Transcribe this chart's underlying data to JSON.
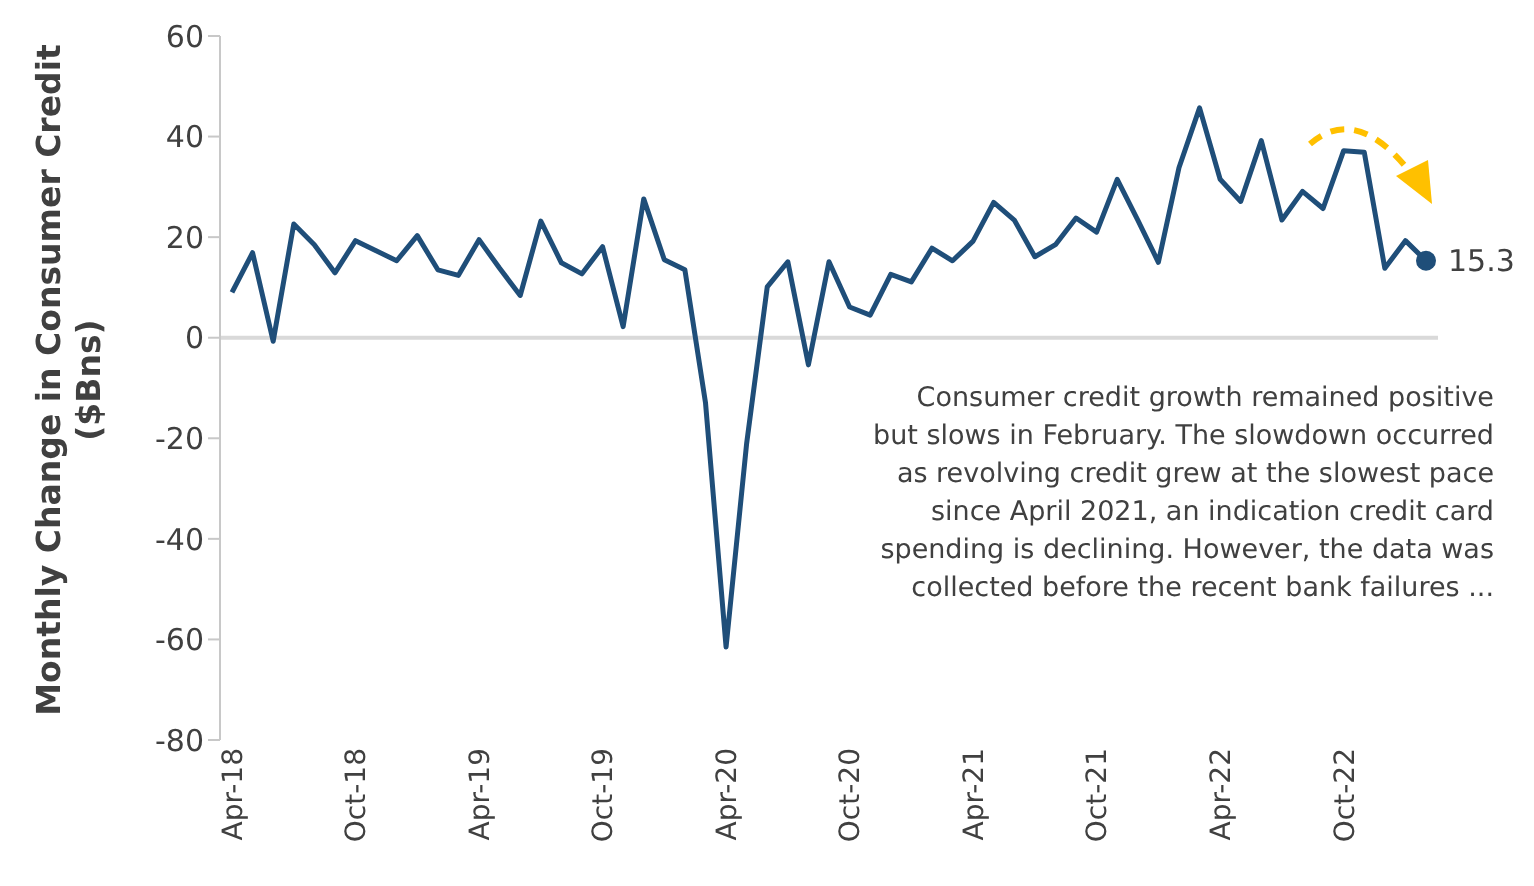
{
  "chart_data": {
    "type": "line",
    "ylabel": "Monthly Change in Consumer Credit ($Bns)",
    "categories": [
      "Apr-18",
      null,
      null,
      null,
      null,
      null,
      "Oct-18",
      null,
      null,
      null,
      null,
      null,
      "Apr-19",
      null,
      null,
      null,
      null,
      null,
      "Oct-19",
      null,
      null,
      null,
      null,
      null,
      "Apr-20",
      null,
      null,
      null,
      null,
      null,
      "Oct-20",
      null,
      null,
      null,
      null,
      null,
      "Apr-21",
      null,
      null,
      null,
      null,
      null,
      "Oct-21",
      null,
      null,
      null,
      null,
      null,
      "Apr-22",
      null,
      null,
      null,
      null,
      null,
      "Oct-22",
      null,
      null,
      null,
      null
    ],
    "series": [
      {
        "color": "#1f4e79",
        "values": [
          9.0,
          16.9,
          -0.7,
          22.6,
          18.5,
          12.9,
          19.3,
          17.3,
          15.3,
          20.3,
          13.5,
          12.4,
          19.5,
          13.8,
          8.4,
          23.2,
          14.9,
          12.7,
          18.1,
          2.2,
          27.6,
          15.5,
          13.5,
          -12.9,
          -61.5,
          -21.0,
          10.1,
          15.1,
          -5.4,
          15.1,
          6.1,
          4.5,
          12.6,
          11.1,
          17.8,
          15.3,
          19.2,
          26.9,
          23.4,
          16.1,
          18.5,
          23.8,
          21.0,
          31.5,
          23.4,
          15.0,
          33.8,
          45.7,
          31.5,
          27.1,
          39.2,
          23.4,
          29.1,
          25.7,
          37.2,
          36.9,
          13.8,
          19.3,
          15.3
        ],
        "value_labels": [
          null,
          null,
          null,
          null,
          null,
          null,
          null,
          null,
          null,
          null,
          null,
          null,
          null,
          null,
          null,
          null,
          null,
          null,
          null,
          null,
          null,
          null,
          null,
          null,
          null,
          null,
          null,
          null,
          null,
          null,
          null,
          null,
          null,
          null,
          null,
          null,
          null,
          null,
          null,
          null,
          null,
          null,
          null,
          null,
          null,
          null,
          null,
          null,
          null,
          null,
          null,
          null,
          null,
          null,
          null,
          null,
          null,
          null,
          "15.3"
        ]
      }
    ],
    "ylim": [
      -80,
      60
    ],
    "yticks": [
      -80,
      -60,
      -40,
      -20,
      0,
      20,
      40,
      60
    ],
    "ref_lines": [
      {
        "axis": "y",
        "value": 0,
        "color": "#d9d9d9"
      }
    ],
    "annotations": [
      "Consumer credit growth remained positive but slows in February. The slowdown occurred as revolving credit grew at the slowest pace since April 2021, an indication credit card spending is declining. However, the data was collected before the recent bank failures ..."
    ],
    "legend": false,
    "grid": false,
    "marker": "none",
    "line_style": "solid"
  }
}
